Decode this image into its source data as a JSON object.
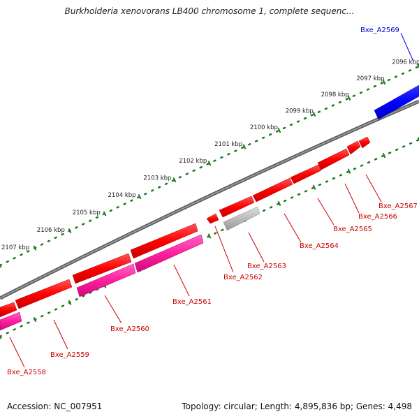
{
  "header": {
    "title": "Burkholderia xenovorans LB400 chromosome 1, complete sequenc..."
  },
  "footer": {
    "accession": "Accession: NC_007951",
    "summary": "Topology: circular; Length: 4,895,836 bp; Genes: 4,498"
  },
  "colors": {
    "backbone": "#777777",
    "ruler_ticks": "#1a7a1a",
    "gene_forward": "#ff0000",
    "gene_reverse": "#ff0000",
    "gene_pink": "#ff1f9f",
    "gene_gray": "#bbbbbb",
    "gene_blue": "#0000ff",
    "label_red": "#cc0000",
    "label_blue": "#0000cc"
  },
  "ruler": {
    "tick_labels": [
      "2096 kbp",
      "2097 kbp",
      "2098 kbp",
      "2099 kbp",
      "2100 kbp",
      "2101 kbp",
      "2102 kbp",
      "2103 kbp",
      "2104 kbp",
      "2105 kbp",
      "2106 kbp",
      "2107 kbp"
    ]
  },
  "genes": [
    {
      "label": "Bxe_A2569",
      "color": "blue"
    },
    {
      "label": "Bxe_A2567",
      "color": "red"
    },
    {
      "label": "Bxe_A2566",
      "color": "red"
    },
    {
      "label": "Bxe_A2565",
      "color": "red"
    },
    {
      "label": "Bxe_A2564",
      "color": "red"
    },
    {
      "label": "Bxe_A2563",
      "color": "gray"
    },
    {
      "label": "Bxe_A2562",
      "color": "red"
    },
    {
      "label": "Bxe_A2561",
      "color": "pink"
    },
    {
      "label": "Bxe_A2560",
      "color": "pink"
    },
    {
      "label": "Bxe_A2559",
      "color": "red"
    },
    {
      "label": "Bxe_A2558",
      "color": "pink"
    }
  ]
}
